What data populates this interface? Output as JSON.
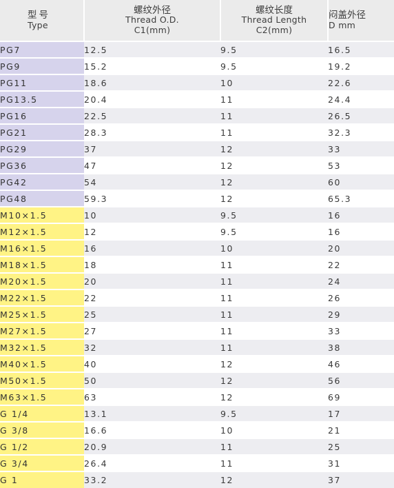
{
  "header": {
    "model": {
      "cn": "型号",
      "en": "Type"
    },
    "c1": {
      "cn": "螺纹外径",
      "en": "Thread O.D.",
      "unit": "C1(mm)"
    },
    "c2": {
      "cn": "螺纹长度",
      "en": "Thread Length",
      "unit": "C2(mm)"
    },
    "d": {
      "cn": "闷盖外径",
      "unit": "D mm"
    }
  },
  "rows": [
    {
      "model": "PG7",
      "c1": "12.5",
      "c2": "9.5",
      "d": "16.5",
      "group": "pg"
    },
    {
      "model": "PG9",
      "c1": "15.2",
      "c2": "9.5",
      "d": "19.2",
      "group": "pg"
    },
    {
      "model": "PG11",
      "c1": "18.6",
      "c2": "10",
      "d": "22.6",
      "group": "pg"
    },
    {
      "model": "PG13.5",
      "c1": "20.4",
      "c2": "11",
      "d": "24.4",
      "group": "pg"
    },
    {
      "model": "PG16",
      "c1": "22.5",
      "c2": "11",
      "d": "26.5",
      "group": "pg"
    },
    {
      "model": "PG21",
      "c1": "28.3",
      "c2": "11",
      "d": "32.3",
      "group": "pg"
    },
    {
      "model": "PG29",
      "c1": "37",
      "c2": "12",
      "d": "33",
      "group": "pg"
    },
    {
      "model": "PG36",
      "c1": "47",
      "c2": "12",
      "d": "53",
      "group": "pg"
    },
    {
      "model": "PG42",
      "c1": "54",
      "c2": "12",
      "d": "60",
      "group": "pg"
    },
    {
      "model": "PG48",
      "c1": "59.3",
      "c2": "12",
      "d": "65.3",
      "group": "pg"
    },
    {
      "model": "M10×1.5",
      "c1": "10",
      "c2": "9.5",
      "d": "16",
      "group": "m"
    },
    {
      "model": "M12×1.5",
      "c1": "12",
      "c2": "9.5",
      "d": "16",
      "group": "m"
    },
    {
      "model": "M16×1.5",
      "c1": "16",
      "c2": "10",
      "d": "20",
      "group": "m"
    },
    {
      "model": "M18×1.5",
      "c1": "18",
      "c2": "11",
      "d": "22",
      "group": "m"
    },
    {
      "model": "M20×1.5",
      "c1": "20",
      "c2": "11",
      "d": "24",
      "group": "m"
    },
    {
      "model": "M22×1.5",
      "c1": "22",
      "c2": "11",
      "d": "26",
      "group": "m"
    },
    {
      "model": "M25×1.5",
      "c1": "25",
      "c2": "11",
      "d": "29",
      "group": "m"
    },
    {
      "model": "M27×1.5",
      "c1": "27",
      "c2": "11",
      "d": "33",
      "group": "m"
    },
    {
      "model": "M32×1.5",
      "c1": "32",
      "c2": "11",
      "d": "38",
      "group": "m"
    },
    {
      "model": "M40×1.5",
      "c1": "40",
      "c2": "12",
      "d": "46",
      "group": "m"
    },
    {
      "model": "M50×1.5",
      "c1": "50",
      "c2": "12",
      "d": "56",
      "group": "m"
    },
    {
      "model": "M63×1.5",
      "c1": "63",
      "c2": "12",
      "d": "69",
      "group": "m"
    },
    {
      "model": "G 1/4",
      "c1": "13.1",
      "c2": "9.5",
      "d": "17",
      "group": "m"
    },
    {
      "model": "G 3/8",
      "c1": "16.6",
      "c2": "10",
      "d": "21",
      "group": "m"
    },
    {
      "model": "G 1/2",
      "c1": "20.9",
      "c2": "11",
      "d": "25",
      "group": "m"
    },
    {
      "model": "G 3/4",
      "c1": "26.4",
      "c2": "11",
      "d": "31",
      "group": "m"
    },
    {
      "model": "G 1",
      "c1": "33.2",
      "c2": "12",
      "d": "37",
      "group": "m"
    }
  ]
}
